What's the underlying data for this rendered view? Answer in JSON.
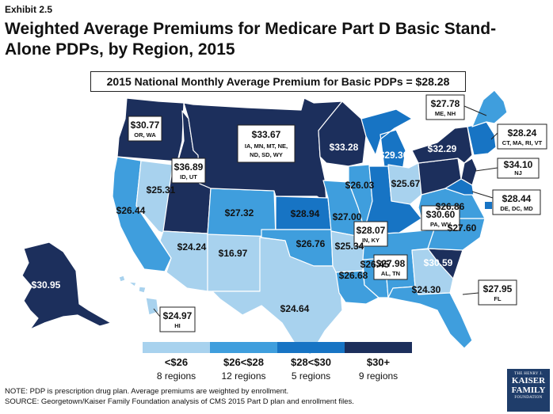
{
  "exhibit": "Exhibit 2.5",
  "title": "Weighted Average Premiums for Medicare Part D Basic Stand-Alone PDPs, by Region, 2015",
  "headline": "2015 National Monthly Average Premium for Basic PDPs = $28.28",
  "colors": {
    "c1": "#a8d2ee",
    "c2": "#3f9edd",
    "c3": "#1774c4",
    "c4": "#1c2f5c",
    "outline": "#ffffff"
  },
  "regions": [
    {
      "id": "ak",
      "value": "$30.95"
    },
    {
      "id": "hi",
      "value": "$24.97",
      "states": "HI"
    },
    {
      "id": "or_wa",
      "value": "$30.77",
      "states": "OR, WA"
    },
    {
      "id": "ca",
      "value": "$26.44"
    },
    {
      "id": "nv",
      "value": "$25.31"
    },
    {
      "id": "id_ut",
      "value": "$36.89",
      "states": "ID, UT"
    },
    {
      "id": "az",
      "value": "$24.24"
    },
    {
      "id": "nm",
      "value": "$16.97"
    },
    {
      "id": "co",
      "value": "$27.32"
    },
    {
      "id": "north",
      "value": "$33.67",
      "states": "IA, MN, MT, NE, ND, SD, WY"
    },
    {
      "id": "ks",
      "value": "$28.94"
    },
    {
      "id": "ok",
      "value": "$26.76"
    },
    {
      "id": "tx",
      "value": "$24.64"
    },
    {
      "id": "mo",
      "value": "$27.00"
    },
    {
      "id": "ar",
      "value": "$25.34"
    },
    {
      "id": "la",
      "value": "$26.68"
    },
    {
      "id": "ms",
      "value": "$26.45"
    },
    {
      "id": "wi",
      "value": "$33.28"
    },
    {
      "id": "mi",
      "value": "$29.30"
    },
    {
      "id": "il",
      "value": "$26.03"
    },
    {
      "id": "oh",
      "value": "$25.67"
    },
    {
      "id": "in_ky",
      "value": "$28.07",
      "states": "IN, KY"
    },
    {
      "id": "al_tn",
      "value": "$27.98",
      "states": "AL, TN"
    },
    {
      "id": "ga",
      "value": "$24.30"
    },
    {
      "id": "fl",
      "value": "$27.95",
      "states": "FL"
    },
    {
      "id": "sc",
      "value": "$30.59"
    },
    {
      "id": "nc",
      "value": "$27.60"
    },
    {
      "id": "va",
      "value": "$26.86"
    },
    {
      "id": "pa_wv",
      "value": "$30.60",
      "states": "PA, WV"
    },
    {
      "id": "ny",
      "value": "$32.29"
    },
    {
      "id": "nj",
      "value": "$34.10",
      "states": "NJ"
    },
    {
      "id": "me_nh",
      "value": "$27.78",
      "states": "ME, NH"
    },
    {
      "id": "new_eng",
      "value": "$28.24",
      "states": "CT, MA, RI, VT"
    },
    {
      "id": "de_dc_md",
      "value": "$28.44",
      "states": "DE, DC, MD"
    }
  ],
  "legend": [
    {
      "label": "<$26",
      "count": "8 regions",
      "color": "#a8d2ee"
    },
    {
      "label": "$26<$28",
      "count": "12 regions",
      "color": "#3f9edd"
    },
    {
      "label": "$28<$30",
      "count": "5 regions",
      "color": "#1774c4"
    },
    {
      "label": "$30+",
      "count": "9 regions",
      "color": "#1c2f5c"
    }
  ],
  "notes": [
    "NOTE: PDP is prescription drug plan. Average premiums are weighted by enrollment.",
    "SOURCE: Georgetown/Kaiser Family Foundation analysis of CMS 2015 Part D plan and enrollment files."
  ],
  "logo": {
    "line1": "THE HENRY J.",
    "line2": "KAISER",
    "line3": "FAMILY",
    "line4": "FOUNDATION"
  }
}
